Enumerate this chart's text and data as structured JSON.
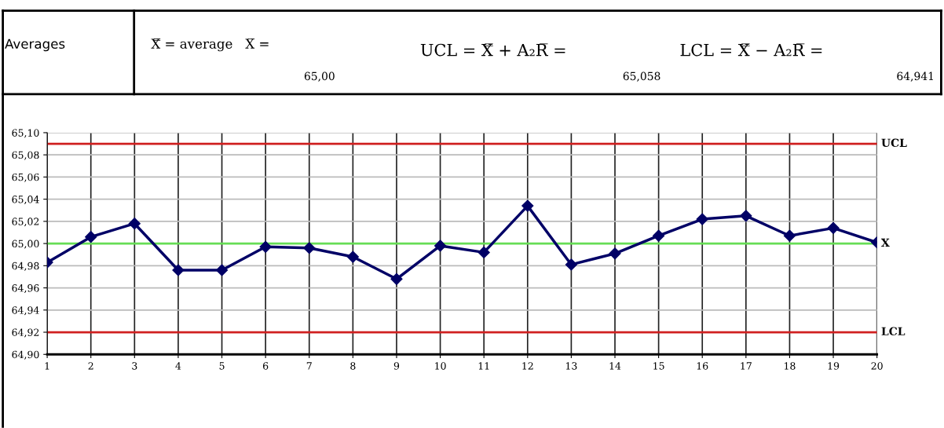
{
  "chart_data": {
    "type": "line",
    "annotations": [
      "Averages",
      "X̿ = average   X̅ =",
      "65,00",
      "UCL = X̿ + A₂R̅ =",
      "65,058",
      "LCL = X̿ − A₂R̅ =",
      "64,941"
    ],
    "categories": [
      "1",
      "2",
      "3",
      "4",
      "5",
      "6",
      "7",
      "8",
      "9",
      "10",
      "11",
      "12",
      "13",
      "14",
      "15",
      "16",
      "17",
      "18",
      "19",
      "20"
    ],
    "series": [
      {
        "color": "#000066",
        "values": [
          64.983,
          65.006,
          65.018,
          64.976,
          64.976,
          64.997,
          64.996,
          64.988,
          64.968,
          64.998,
          64.992,
          65.034,
          64.981,
          64.991,
          65.007,
          65.022,
          65.025,
          65.007,
          65.014,
          65.001
        ]
      }
    ],
    "ylim": [
      64.9,
      65.1
    ],
    "yticks": [
      {
        "value": 64.9,
        "label": "64,90"
      },
      {
        "value": 64.92,
        "label": "64,92"
      },
      {
        "value": 64.94,
        "label": "64,94"
      },
      {
        "value": 64.96,
        "label": "64,96"
      },
      {
        "value": 64.98,
        "label": "64,98"
      },
      {
        "value": 65.0,
        "label": "65,00"
      },
      {
        "value": 65.02,
        "label": "65,02"
      },
      {
        "value": 65.04,
        "label": "65,04"
      },
      {
        "value": 65.06,
        "label": "65,06"
      },
      {
        "value": 65.08,
        "label": "65,08"
      },
      {
        "value": 65.1,
        "label": "65,10"
      }
    ],
    "ref_lines": [
      {
        "axis": "y",
        "value": 65.09,
        "label": "UCL",
        "color": "#d02020"
      },
      {
        "axis": "y",
        "value": 65.0,
        "label": "X",
        "color": "#66dd55"
      },
      {
        "axis": "y",
        "value": 64.92,
        "label": "LCL",
        "color": "#d02020"
      }
    ],
    "grid": true,
    "marker": "diamond",
    "line_style": "solid",
    "legend": false
  }
}
